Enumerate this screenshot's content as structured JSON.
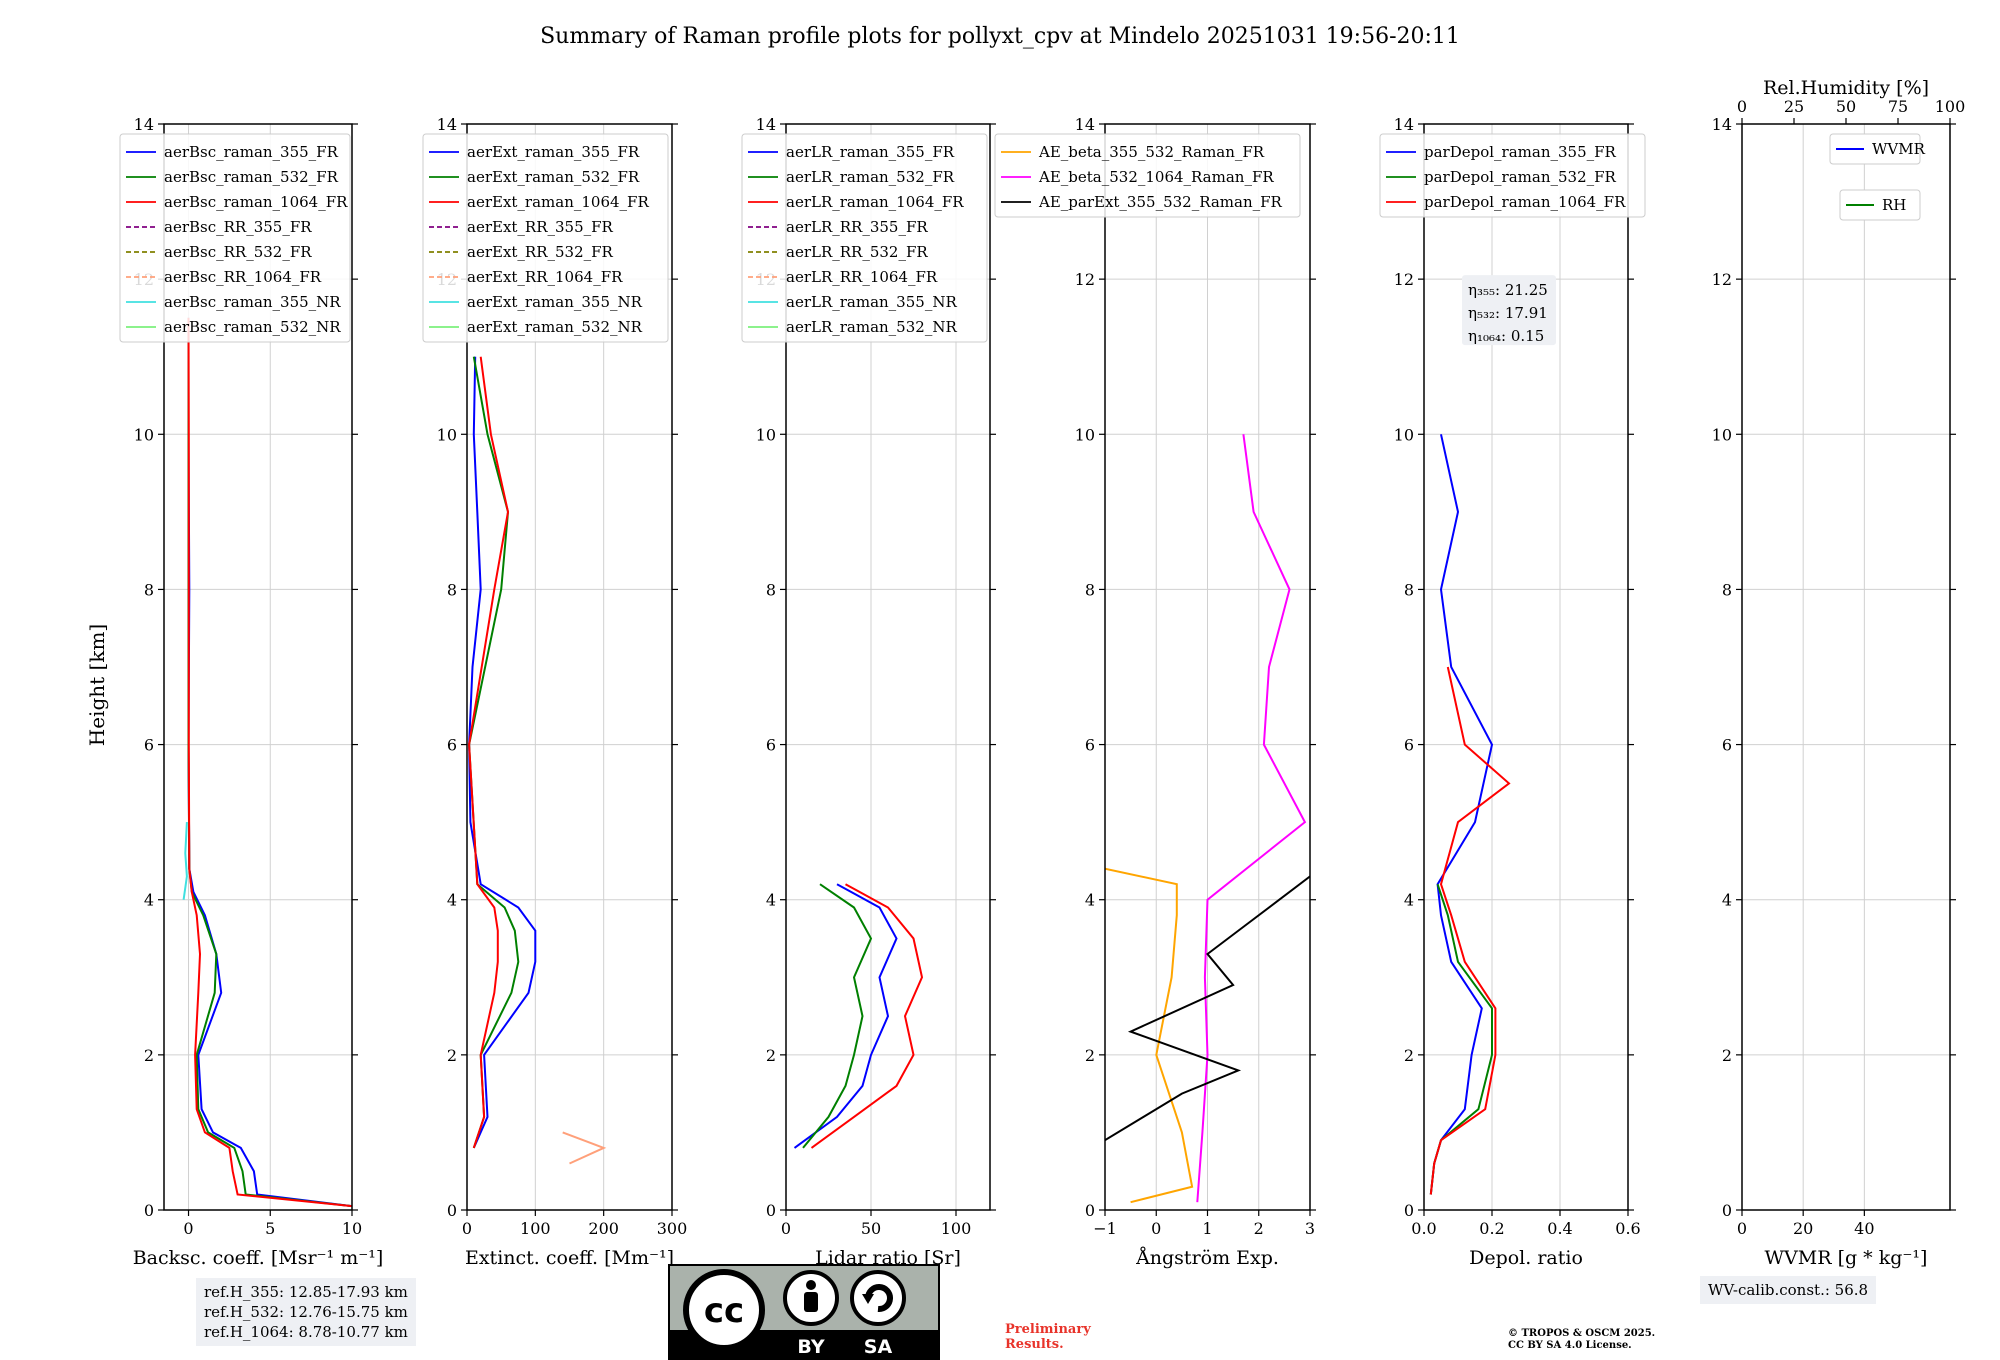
{
  "figure": {
    "title": "Summary of Raman profile plots for pollyxt_cpv at Mindelo 20251031 19:56-20:11",
    "ylabel": "Height [km]"
  },
  "chart_data": [
    {
      "id": "bsc",
      "type": "line",
      "xlabel": "Backsc. coeff. [Msr⁻¹ m⁻¹]",
      "xlim": [
        -1.5,
        10
      ],
      "xticks": [
        0,
        5,
        10
      ],
      "ylim": [
        0,
        14
      ],
      "yticks": [
        0,
        2,
        4,
        6,
        8,
        10,
        12,
        14
      ],
      "legend": [
        "aerBsc_raman_355_FR",
        "aerBsc_raman_532_FR",
        "aerBsc_raman_1064_FR",
        "aerBsc_RR_355_FR",
        "aerBsc_RR_532_FR",
        "aerBsc_RR_1064_FR",
        "aerBsc_raman_355_NR",
        "aerBsc_raman_532_NR"
      ],
      "series": [
        {
          "name": "aerBsc_raman_355_FR",
          "color": "#0000ff",
          "y": [
            0.05,
            0.2,
            0.5,
            0.8,
            1.0,
            1.3,
            2.0,
            2.8,
            3.3,
            3.8,
            4.1,
            4.4,
            6,
            8,
            10,
            11.5
          ],
          "x": [
            10,
            4.2,
            4.0,
            3.2,
            1.5,
            0.8,
            0.6,
            2.0,
            1.7,
            1.0,
            0.3,
            0.05,
            0.0,
            0.05,
            0.0,
            0.0
          ]
        },
        {
          "name": "aerBsc_raman_532_FR",
          "color": "#008000",
          "y": [
            0.05,
            0.2,
            0.5,
            0.8,
            1.0,
            1.3,
            2.0,
            2.8,
            3.3,
            3.8,
            4.1,
            4.4,
            6,
            8,
            10,
            11.5
          ],
          "x": [
            10,
            3.5,
            3.3,
            2.8,
            1.2,
            0.6,
            0.5,
            1.6,
            1.7,
            0.9,
            0.2,
            0.05,
            0.0,
            0.0,
            0.0,
            0.0
          ]
        },
        {
          "name": "aerBsc_raman_1064_FR",
          "color": "#ff0000",
          "y": [
            0.05,
            0.2,
            0.5,
            0.8,
            1.0,
            1.3,
            2.0,
            2.8,
            3.3,
            3.8,
            4.1,
            4.4,
            6,
            8,
            10,
            11.5
          ],
          "x": [
            10,
            3.0,
            2.7,
            2.5,
            1.0,
            0.5,
            0.4,
            0.6,
            0.7,
            0.5,
            0.2,
            0.05,
            0.02,
            0.02,
            0.02,
            0.0
          ]
        },
        {
          "name": "aerBsc_raman_355_NR",
          "color": "#40e0e0",
          "y": [
            4.0,
            4.3,
            4.6,
            5.0
          ],
          "x": [
            -0.3,
            -0.1,
            -0.2,
            -0.1
          ]
        }
      ]
    },
    {
      "id": "ext",
      "type": "line",
      "xlabel": "Extinct. coeff. [Mm⁻¹]",
      "xlim": [
        0,
        300
      ],
      "xticks": [
        0,
        100,
        200,
        300
      ],
      "ylim": [
        0,
        14
      ],
      "yticks": [
        0,
        2,
        4,
        6,
        8,
        10,
        12,
        14
      ],
      "legend": [
        "aerExt_raman_355_FR",
        "aerExt_raman_532_FR",
        "aerExt_raman_1064_FR",
        "aerExt_RR_355_FR",
        "aerExt_RR_532_FR",
        "aerExt_RR_1064_FR",
        "aerExt_raman_355_NR",
        "aerExt_raman_532_NR"
      ],
      "series": [
        {
          "name": "aerExt_raman_355_FR",
          "color": "#0000ff",
          "y": [
            0.8,
            1.2,
            2.0,
            2.8,
            3.2,
            3.6,
            3.9,
            4.2,
            5,
            6,
            7,
            8,
            9,
            10,
            11
          ],
          "x": [
            10,
            30,
            25,
            90,
            100,
            100,
            75,
            20,
            5,
            3,
            8,
            20,
            15,
            10,
            12
          ]
        },
        {
          "name": "aerExt_raman_532_FR",
          "color": "#008000",
          "y": [
            0.8,
            1.2,
            2.0,
            2.8,
            3.2,
            3.6,
            3.9,
            4.2,
            6,
            8,
            9,
            10,
            11
          ],
          "x": [
            10,
            25,
            20,
            65,
            75,
            70,
            55,
            15,
            3,
            50,
            60,
            30,
            10
          ]
        },
        {
          "name": "aerExt_raman_1064_FR",
          "color": "#ff0000",
          "y": [
            0.8,
            1.2,
            2.0,
            2.8,
            3.2,
            3.6,
            3.9,
            4.2,
            6,
            8,
            9,
            10,
            11
          ],
          "x": [
            10,
            25,
            20,
            40,
            45,
            45,
            40,
            15,
            3,
            40,
            60,
            35,
            20
          ]
        },
        {
          "name": "aerExt_RR_1064_FR",
          "color": "#ffa07a",
          "y": [
            0.6,
            0.8,
            1.0
          ],
          "x": [
            150,
            200,
            140
          ]
        }
      ]
    },
    {
      "id": "lr",
      "type": "line",
      "xlabel": "Lidar ratio [Sr]",
      "xlim": [
        0,
        120
      ],
      "xticks": [
        0,
        50,
        100
      ],
      "ylim": [
        0,
        14
      ],
      "yticks": [
        0,
        2,
        4,
        6,
        8,
        10,
        12,
        14
      ],
      "legend": [
        "aerLR_raman_355_FR",
        "aerLR_raman_532_FR",
        "aerLR_raman_1064_FR",
        "aerLR_RR_355_FR",
        "aerLR_RR_532_FR",
        "aerLR_RR_1064_FR",
        "aerLR_raman_355_NR",
        "aerLR_raman_532_NR"
      ],
      "series": [
        {
          "name": "aerLR_raman_355_FR",
          "color": "#0000ff",
          "y": [
            0.8,
            1.2,
            1.6,
            2.0,
            2.5,
            3.0,
            3.5,
            3.9,
            4.2
          ],
          "x": [
            5,
            30,
            45,
            50,
            60,
            55,
            65,
            55,
            30
          ]
        },
        {
          "name": "aerLR_raman_532_FR",
          "color": "#008000",
          "y": [
            0.8,
            1.2,
            1.6,
            2.0,
            2.5,
            3.0,
            3.5,
            3.9,
            4.2
          ],
          "x": [
            10,
            25,
            35,
            40,
            45,
            40,
            50,
            40,
            20
          ]
        },
        {
          "name": "aerLR_raman_1064_FR",
          "color": "#ff0000",
          "y": [
            0.8,
            1.2,
            1.6,
            2.0,
            2.5,
            3.0,
            3.5,
            3.9,
            4.2
          ],
          "x": [
            15,
            40,
            65,
            75,
            70,
            80,
            75,
            60,
            35
          ]
        }
      ]
    },
    {
      "id": "ae",
      "type": "line",
      "xlabel": "Ångström Exp.",
      "xlim": [
        -1,
        3
      ],
      "xticks": [
        -1,
        0,
        1,
        2,
        3
      ],
      "ylim": [
        0,
        14
      ],
      "yticks": [
        0,
        2,
        4,
        6,
        8,
        10,
        12,
        14
      ],
      "legend": [
        "AE_beta_355_532_Raman_FR",
        "AE_beta_532_1064_Raman_FR",
        "AE_parExt_355_532_Raman_FR"
      ],
      "series": [
        {
          "name": "AE_beta_355_532_Raman_FR",
          "color": "#ffa500",
          "y": [
            0.1,
            0.3,
            1.0,
            2.0,
            3.0,
            3.8,
            4.2,
            4.4
          ],
          "x": [
            -0.5,
            0.7,
            0.5,
            0.0,
            0.3,
            0.4,
            0.4,
            -1.0
          ]
        },
        {
          "name": "AE_beta_532_1064_Raman_FR",
          "color": "#ff00ff",
          "y": [
            0.1,
            1.0,
            2.0,
            3.0,
            4.0,
            5.0,
            6.0,
            7.0,
            8.0,
            9.0,
            10.0
          ],
          "x": [
            0.8,
            0.9,
            1.0,
            0.95,
            1.0,
            2.9,
            2.1,
            2.2,
            2.6,
            1.9,
            1.7
          ]
        },
        {
          "name": "AE_parExt_355_532_Raman_FR",
          "color": "#000000",
          "y": [
            0.9,
            1.5,
            1.8,
            2.3,
            2.9,
            3.3,
            3.7,
            4.0,
            4.3
          ],
          "x": [
            -1.0,
            0.5,
            1.6,
            -0.5,
            1.5,
            1.0,
            1.8,
            2.4,
            3.0
          ]
        }
      ]
    },
    {
      "id": "depol",
      "type": "line",
      "xlabel": "Depol. ratio",
      "xlim": [
        0,
        0.6
      ],
      "xticks": [
        0.0,
        0.2,
        0.4,
        0.6
      ],
      "ylim": [
        0,
        14
      ],
      "yticks": [
        0,
        2,
        4,
        6,
        8,
        10,
        12,
        14
      ],
      "legend": [
        "parDepol_raman_355_FR",
        "parDepol_raman_532_FR",
        "parDepol_raman_1064_FR"
      ],
      "annotation": [
        "η₃₅₅: 21.25",
        "η₅₃₂: 17.91",
        "η₁₀₆₄: 0.15"
      ],
      "series": [
        {
          "name": "parDepol_raman_355_FR",
          "color": "#0000ff",
          "y": [
            0.2,
            0.6,
            0.9,
            1.3,
            2.0,
            2.6,
            3.2,
            3.8,
            4.2,
            5.0,
            6.0,
            7.0,
            8.0,
            9.0,
            10.0
          ],
          "x": [
            0.02,
            0.03,
            0.05,
            0.12,
            0.14,
            0.17,
            0.08,
            0.05,
            0.04,
            0.15,
            0.2,
            0.08,
            0.05,
            0.1,
            0.05
          ]
        },
        {
          "name": "parDepol_raman_532_FR",
          "color": "#008000",
          "y": [
            0.2,
            0.6,
            0.9,
            1.3,
            2.0,
            2.6,
            3.2,
            3.8,
            4.2
          ],
          "x": [
            0.02,
            0.03,
            0.05,
            0.16,
            0.2,
            0.2,
            0.1,
            0.07,
            0.04
          ]
        },
        {
          "name": "parDepol_raman_1064_FR",
          "color": "#ff0000",
          "y": [
            0.2,
            0.6,
            0.9,
            1.3,
            2.0,
            2.6,
            3.2,
            3.8,
            4.2,
            5.0,
            5.5,
            6.0,
            7.0
          ],
          "x": [
            0.02,
            0.03,
            0.05,
            0.18,
            0.21,
            0.21,
            0.12,
            0.08,
            0.05,
            0.1,
            0.25,
            0.12,
            0.07
          ]
        }
      ]
    },
    {
      "id": "wv",
      "type": "line",
      "xlabel": "WVMR [g * kg⁻¹]",
      "xlim": [
        0,
        68
      ],
      "xticks": [
        0,
        20,
        40
      ],
      "ylim": [
        0,
        14
      ],
      "yticks": [
        0,
        2,
        4,
        6,
        8,
        10,
        12,
        14
      ],
      "top_xlabel": "Rel.Humidity [%]",
      "top_xticks": [
        0,
        25,
        50,
        75,
        100
      ],
      "legend": [
        "WVMR",
        "RH"
      ],
      "series": []
    }
  ],
  "notes": {
    "ref_heights": [
      "ref.H_355: 12.85-17.93 km",
      "ref.H_532: 12.76-15.75 km",
      "ref.H_1064: 8.78-10.77 km"
    ],
    "wv_calib": "WV-calib.const.: 56.8",
    "preliminary": [
      "Preliminary",
      "Results."
    ],
    "copyright": [
      "© TROPOS & OSCM 2025.",
      "CC BY SA 4.0 License."
    ],
    "license_badge": [
      "BY",
      "SA"
    ]
  },
  "colors": {
    "blue": "#0000ff",
    "green": "#008000",
    "red": "#ff0000",
    "purple": "#800080",
    "olive": "#808000",
    "salmon": "#ffa07a",
    "cyan": "#40e0e0",
    "lightgreen": "#7cf07c",
    "orange": "#ffa500",
    "magenta": "#ff00ff",
    "black": "#000000"
  }
}
